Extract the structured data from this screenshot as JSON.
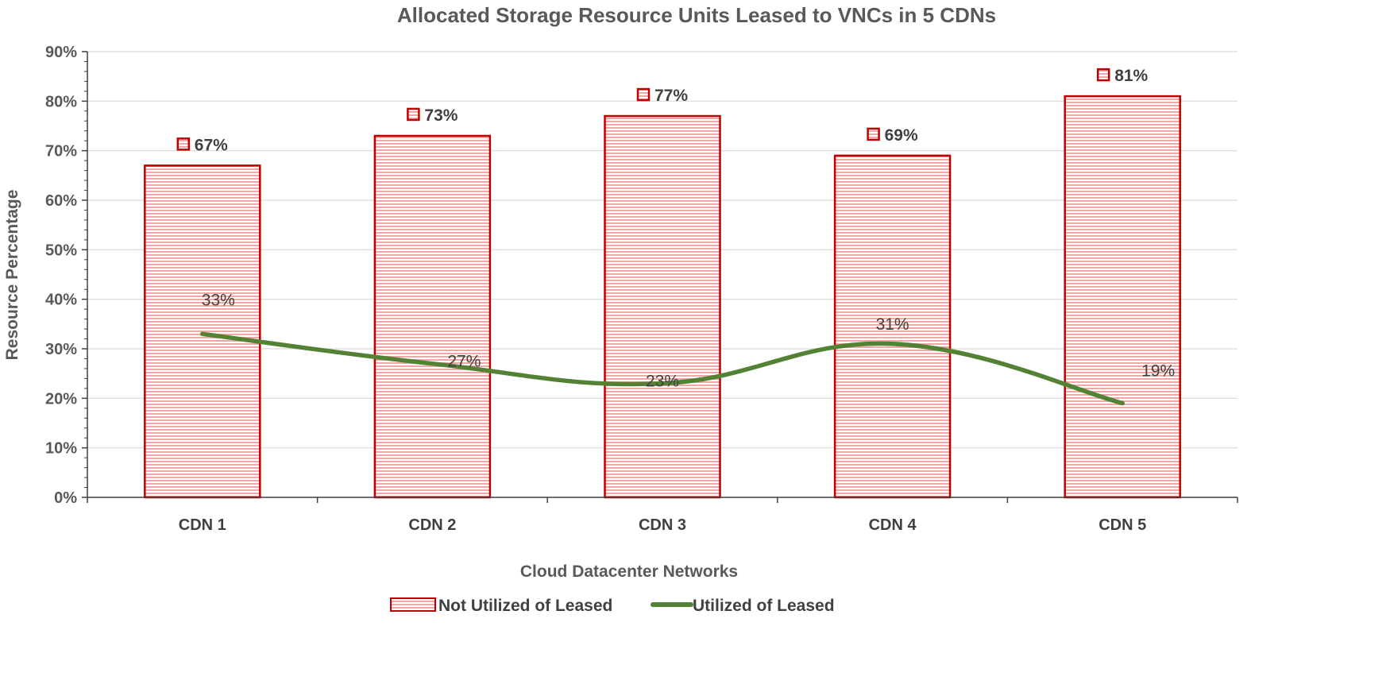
{
  "chart_data": {
    "type": "bar",
    "title": "Allocated Storage Resource Units Leased to VNCs in 5 CDNs",
    "xlabel": "Cloud Datacenter Networks",
    "ylabel": "Resource Percentage",
    "categories": [
      "CDN 1",
      "CDN 2",
      "CDN 3",
      "CDN 4",
      "CDN 5"
    ],
    "ylim": [
      0,
      90
    ],
    "y_ticks": [
      0,
      10,
      20,
      30,
      40,
      50,
      60,
      70,
      80,
      90
    ],
    "y_tick_labels": [
      "0%",
      "10%",
      "20%",
      "30%",
      "40%",
      "50%",
      "60%",
      "70%",
      "80%",
      "90%"
    ],
    "grid": true,
    "legend_position": "bottom",
    "series": [
      {
        "name": "Not Utilized of Leased",
        "type": "bar",
        "values": [
          67,
          73,
          77,
          69,
          81
        ],
        "labels": [
          "67%",
          "73%",
          "77%",
          "69%",
          "81%"
        ],
        "color": "#c00000",
        "fill_color": "#f4c7c7"
      },
      {
        "name": "Utilized of Leased",
        "type": "line",
        "values": [
          33,
          27,
          23,
          31,
          19
        ],
        "labels": [
          "33%",
          "27%",
          "23%",
          "31%",
          "19%"
        ],
        "color": "#548235"
      }
    ]
  }
}
